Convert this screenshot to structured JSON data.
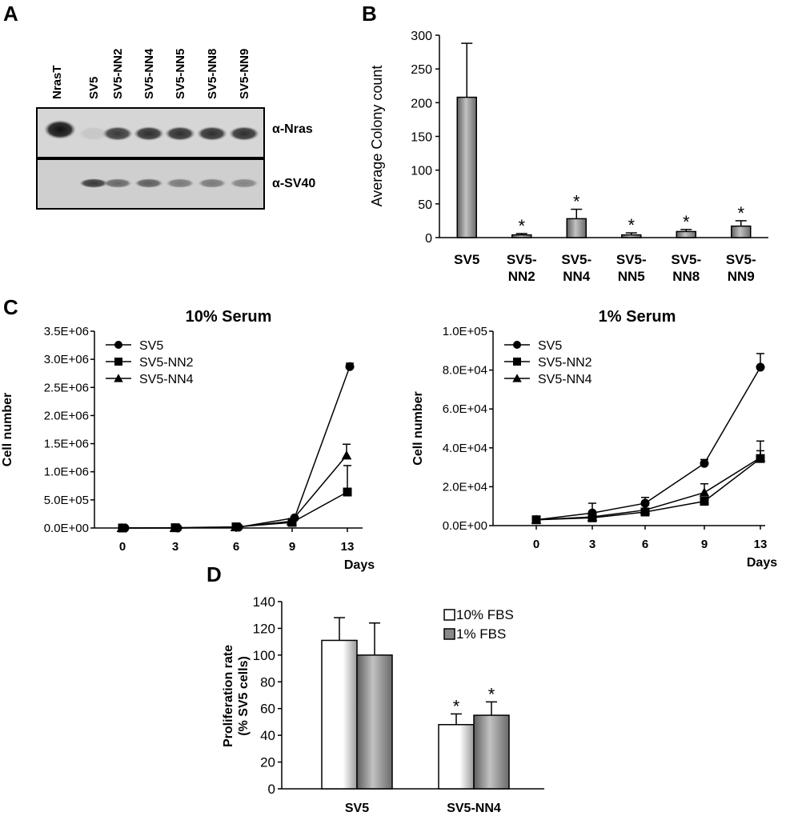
{
  "panels": {
    "A": "A",
    "B": "B",
    "C": "C",
    "D": "D"
  },
  "blot": {
    "lanes": [
      "NrasT",
      "SV5",
      "SV5-NN2",
      "SV5-NN4",
      "SV5-NN5",
      "SV5-NN8",
      "SV5-NN9"
    ],
    "nras_label": "α-Nras",
    "sv40_label": "α-SV40",
    "nras_intensity": [
      1.0,
      0.08,
      0.8,
      0.85,
      0.85,
      0.85,
      0.85
    ],
    "sv40_intensity": [
      0.0,
      0.8,
      0.55,
      0.6,
      0.45,
      0.45,
      0.4
    ]
  },
  "colors": {
    "bar_gray": "#8a8a8a",
    "bar_white": "#ffffff",
    "line": "#000000",
    "blot_bg": "#d6d6d6"
  },
  "chart_data": [
    {
      "id": "B",
      "type": "bar",
      "categories": [
        "SV5",
        "SV5-\nNN2",
        "SV5-\nNN4",
        "SV5-\nNN5",
        "SV5-\nNN8",
        "SV5-\nNN9"
      ],
      "values": [
        208,
        4,
        28,
        4,
        9,
        17
      ],
      "errors": [
        80,
        2,
        14,
        3,
        3,
        8
      ],
      "significance": [
        "",
        "*",
        "*",
        "*",
        "*",
        "*"
      ],
      "ylabel": "Average Colony count",
      "xlabel": "",
      "title": "",
      "ylim": [
        0,
        300
      ],
      "yticks": [
        "0",
        "50",
        "100",
        "150",
        "200",
        "250",
        "300"
      ],
      "grid": false,
      "legend": "none"
    },
    {
      "id": "C1",
      "type": "line",
      "title": "10% Serum",
      "xlabel": "Days",
      "ylabel": "Cell number",
      "x": [
        0,
        3,
        6,
        9,
        13
      ],
      "xticks": [
        "0",
        "3",
        "6",
        "9",
        "13"
      ],
      "ylim": [
        0,
        3500000
      ],
      "yticks": [
        "0.0E+00",
        "5.0E+05",
        "1.0E+06",
        "1.5E+06",
        "2.0E+06",
        "2.5E+06",
        "3.0E+06",
        "3.5E+06"
      ],
      "legend": "top-left",
      "series": [
        {
          "name": "SV5",
          "marker": "circle",
          "values": [
            0,
            0,
            15000,
            180000,
            2870000
          ],
          "errors": [
            0,
            0,
            0,
            0,
            60000
          ]
        },
        {
          "name": "SV5-NN2",
          "marker": "square",
          "values": [
            0,
            5000,
            20000,
            100000,
            640000
          ],
          "errors": [
            0,
            0,
            0,
            0,
            470000
          ]
        },
        {
          "name": "SV5-NN4",
          "marker": "triangle",
          "values": [
            0,
            0,
            15000,
            120000,
            1290000
          ],
          "errors": [
            0,
            0,
            0,
            0,
            200000
          ]
        }
      ]
    },
    {
      "id": "C2",
      "type": "line",
      "title": "1% Serum",
      "xlabel": "Days",
      "ylabel": "Cell number",
      "x": [
        0,
        3,
        6,
        9,
        13
      ],
      "xticks": [
        "0",
        "3",
        "6",
        "9",
        "13"
      ],
      "ylim": [
        0,
        100000
      ],
      "yticks": [
        "0.0E+00",
        "2.0E+04",
        "4.0E+04",
        "6.0E+04",
        "8.0E+04",
        "1.0E+05"
      ],
      "legend": "top-left",
      "series": [
        {
          "name": "SV5",
          "marker": "circle",
          "values": [
            3000,
            6500,
            11500,
            32000,
            81500
          ],
          "errors": [
            0,
            5000,
            3000,
            2000,
            7000
          ]
        },
        {
          "name": "SV5-NN2",
          "marker": "square",
          "values": [
            3000,
            4000,
            7000,
            12500,
            34500
          ],
          "errors": [
            0,
            1500,
            1500,
            2000,
            4000
          ]
        },
        {
          "name": "SV5-NN4",
          "marker": "triangle",
          "values": [
            3000,
            4500,
            8000,
            17000,
            35000
          ],
          "errors": [
            0,
            2000,
            2500,
            4500,
            8500
          ]
        }
      ]
    },
    {
      "id": "D",
      "type": "bar",
      "title": "",
      "xlabel": "",
      "ylabel": "Proliferation rate\n(% SV5 cells)",
      "categories": [
        "SV5",
        "SV5-NN4"
      ],
      "ylim": [
        0,
        140
      ],
      "yticks": [
        "0",
        "20",
        "40",
        "60",
        "80",
        "100",
        "120",
        "140"
      ],
      "legend": "top-right",
      "series": [
        {
          "name": "10% FBS",
          "values": [
            111,
            48
          ],
          "errors": [
            17,
            8
          ],
          "significance": [
            "",
            "*"
          ]
        },
        {
          "name": "1% FBS",
          "values": [
            100,
            55
          ],
          "errors": [
            24,
            10
          ],
          "significance": [
            "",
            "*"
          ]
        }
      ]
    }
  ]
}
